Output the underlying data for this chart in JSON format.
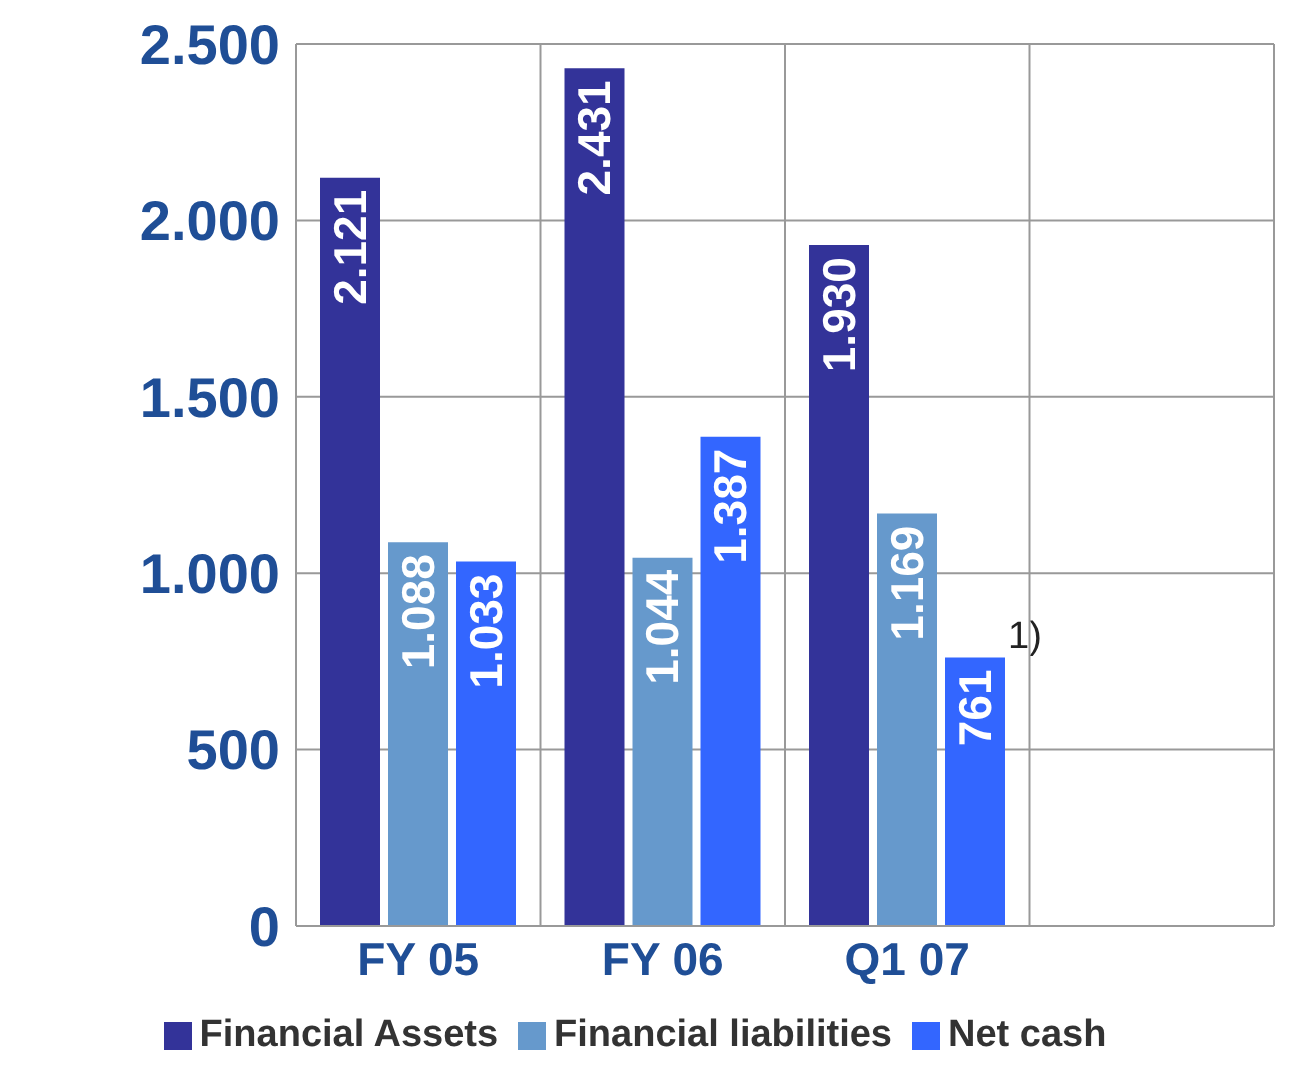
{
  "chart_data": {
    "type": "bar",
    "categories": [
      "FY 05",
      "FY 06",
      "Q1 07",
      null
    ],
    "series": [
      {
        "name": "Financial Assets",
        "color": "#333399",
        "values": [
          2121,
          2431,
          1930,
          null
        ],
        "value_labels": [
          "2.121",
          "2.431",
          "1.930",
          null
        ]
      },
      {
        "name": "Financial liabilities",
        "color": "#6699cc",
        "values": [
          1088,
          1044,
          1169,
          null
        ],
        "value_labels": [
          "1.088",
          "1.044",
          "1.169",
          null
        ]
      },
      {
        "name": "Net cash",
        "color": "#3366ff",
        "values": [
          1033,
          1387,
          761,
          null
        ],
        "value_labels": [
          "1.033",
          "1.387",
          "761",
          null
        ]
      }
    ],
    "ylim": [
      0,
      2500
    ],
    "yticks": [
      {
        "value": 0,
        "label": "0"
      },
      {
        "value": 500,
        "label": "500"
      },
      {
        "value": 1000,
        "label": "1.000"
      },
      {
        "value": 1500,
        "label": "1.500"
      },
      {
        "value": 2000,
        "label": "2.000"
      },
      {
        "value": 2500,
        "label": "2.500"
      }
    ],
    "grid": true,
    "legend": "bottom",
    "annotations": [
      "1)"
    ]
  }
}
